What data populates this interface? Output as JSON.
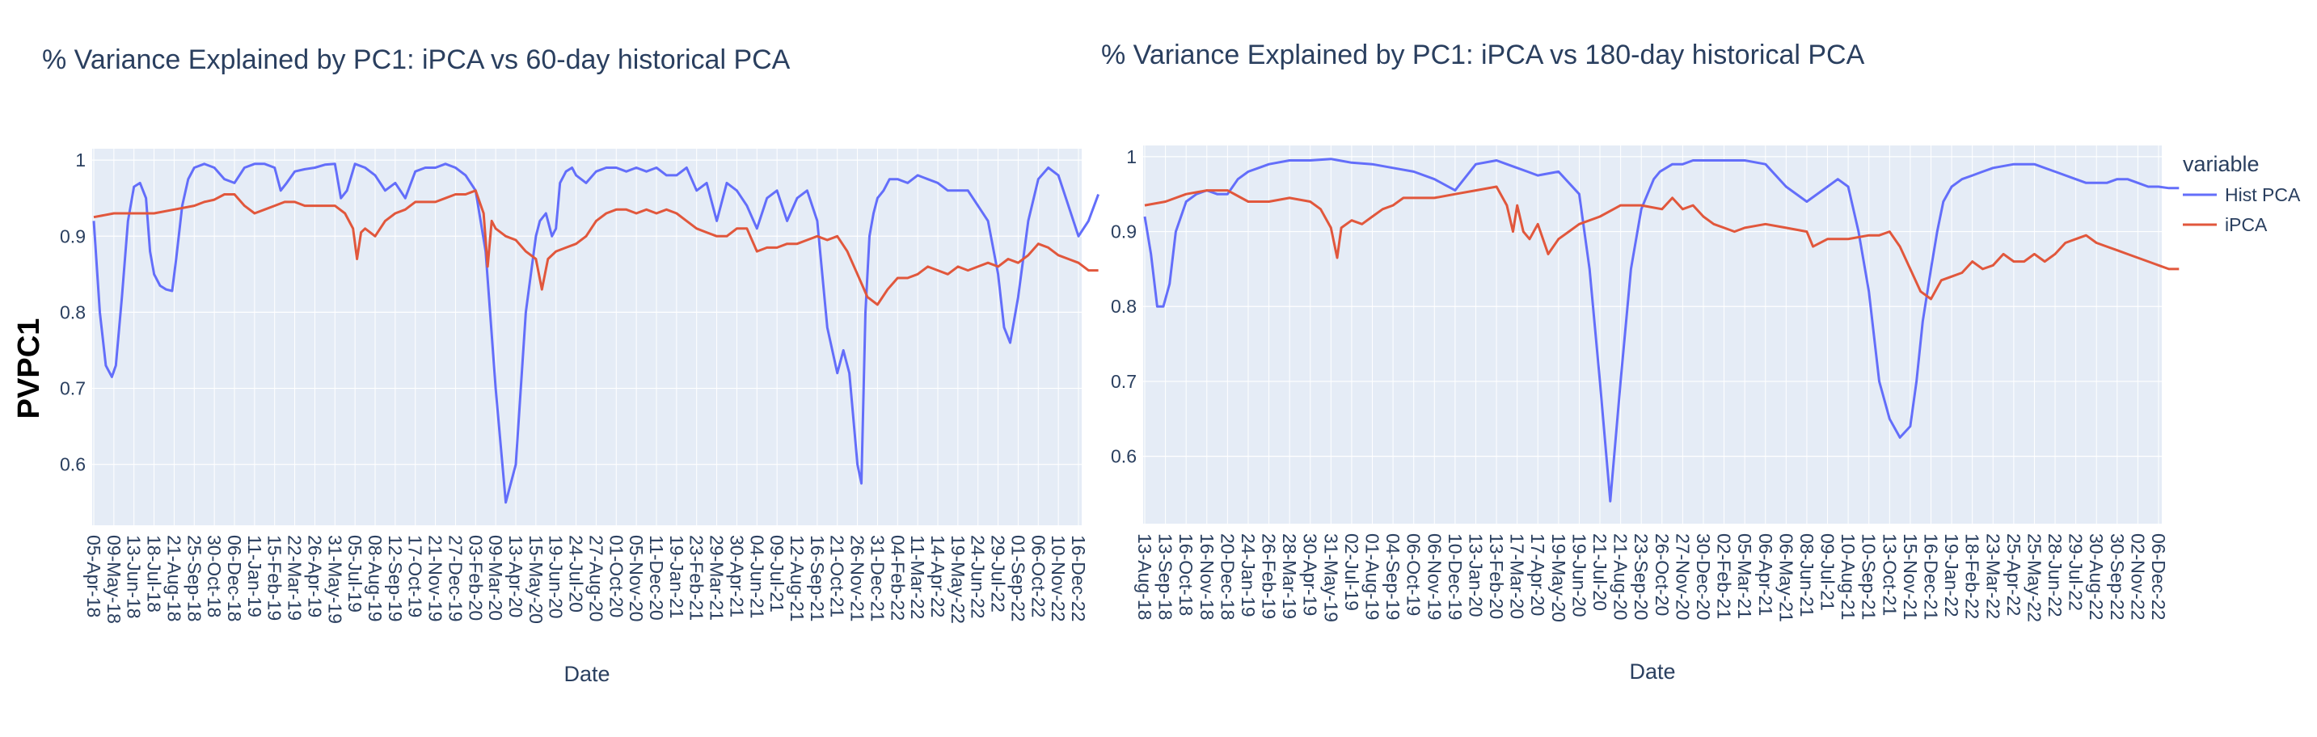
{
  "figure_ylabel": "PVPC1",
  "colors": {
    "Hist PCA": "#636efa",
    "iPCA": "#e1573c",
    "plot_bg": "#e5ecf6",
    "grid": "#ffffff",
    "text": "#2a3f5f"
  },
  "legend": {
    "title": "variable",
    "placement": "right",
    "entries": [
      "Hist PCA",
      "iPCA"
    ]
  },
  "chart_data": [
    {
      "type": "line",
      "title": "% Variance Explained by PC1: iPCA vs 60-day historical PCA",
      "xlabel": "Date",
      "ylabel": "PVPC1",
      "ylim": [
        0.52,
        1.015
      ],
      "yticks": [
        0.6,
        0.7,
        0.8,
        0.9,
        1
      ],
      "ytick_labels": [
        "0.6",
        "0.7",
        "0.8",
        "0.9",
        "1"
      ],
      "x_tick_labels": [
        "05-Apr-18",
        "09-May-18",
        "13-Jun-18",
        "18-Jul-18",
        "21-Aug-18",
        "25-Sep-18",
        "30-Oct-18",
        "06-Dec-18",
        "11-Jan-19",
        "15-Feb-19",
        "22-Mar-19",
        "26-Apr-19",
        "31-May-19",
        "05-Jul-19",
        "08-Aug-19",
        "12-Sep-19",
        "17-Oct-19",
        "21-Nov-19",
        "27-Dec-19",
        "03-Feb-20",
        "09-Mar-20",
        "13-Apr-20",
        "15-May-20",
        "19-Jun-20",
        "24-Jul-20",
        "27-Aug-20",
        "01-Oct-20",
        "05-Nov-20",
        "11-Dec-20",
        "19-Jan-21",
        "23-Feb-21",
        "29-Mar-21",
        "30-Apr-21",
        "04-Jun-21",
        "09-Jul-21",
        "12-Aug-21",
        "16-Sep-21",
        "21-Oct-21",
        "26-Nov-21",
        "31-Dec-21",
        "04-Feb-22",
        "11-Mar-22",
        "14-Apr-22",
        "19-May-22",
        "24-Jun-22",
        "29-Jul-22",
        "01-Sep-22",
        "06-Oct-22",
        "10-Nov-22",
        "16-Dec-22"
      ],
      "grid": true,
      "series": [
        {
          "name": "Hist PCA",
          "x": [
            0,
            0.3,
            0.6,
            0.9,
            1.1,
            1.4,
            1.7,
            2.0,
            2.3,
            2.6,
            2.8,
            3.0,
            3.3,
            3.6,
            3.9,
            4.1,
            4.4,
            4.7,
            5.0,
            5.5,
            6.0,
            6.5,
            7.0,
            7.5,
            8.0,
            8.5,
            9.0,
            9.3,
            9.6,
            10.0,
            10.5,
            11.0,
            11.5,
            12.0,
            12.3,
            12.6,
            13.0,
            13.5,
            14.0,
            14.5,
            15.0,
            15.5,
            16.0,
            16.5,
            17.0,
            17.5,
            18.0,
            18.5,
            19.0,
            19.5,
            20.0,
            20.5,
            21.0,
            21.5,
            22.0,
            22.2,
            22.5,
            22.8,
            23.0,
            23.2,
            23.5,
            23.8,
            24.0,
            24.5,
            25.0,
            25.5,
            26.0,
            26.5,
            27.0,
            27.5,
            28.0,
            28.5,
            29.0,
            29.5,
            30.0,
            30.5,
            31.0,
            31.5,
            32.0,
            32.5,
            33.0,
            33.5,
            34.0,
            34.5,
            35.0,
            35.5,
            36.0,
            36.5,
            37.0,
            37.3,
            37.6,
            38.0,
            38.2,
            38.4,
            38.6,
            38.8,
            39.0,
            39.3,
            39.6,
            40.0,
            40.5,
            41.0,
            41.5,
            42.0,
            42.5,
            43.0,
            43.5,
            44.0,
            44.5,
            45.0,
            45.3,
            45.6,
            46.0,
            46.5,
            47.0,
            47.5,
            48.0,
            48.5,
            49.0,
            49.5,
            49.99
          ],
          "values": [
            0.92,
            0.8,
            0.73,
            0.715,
            0.73,
            0.82,
            0.92,
            0.965,
            0.97,
            0.95,
            0.88,
            0.85,
            0.835,
            0.83,
            0.828,
            0.87,
            0.94,
            0.975,
            0.99,
            0.995,
            0.99,
            0.975,
            0.97,
            0.99,
            0.995,
            0.995,
            0.99,
            0.96,
            0.97,
            0.985,
            0.988,
            0.99,
            0.994,
            0.995,
            0.95,
            0.96,
            0.995,
            0.99,
            0.98,
            0.96,
            0.97,
            0.95,
            0.985,
            0.99,
            0.99,
            0.995,
            0.99,
            0.98,
            0.96,
            0.88,
            0.7,
            0.55,
            0.6,
            0.8,
            0.9,
            0.92,
            0.93,
            0.9,
            0.91,
            0.97,
            0.985,
            0.99,
            0.98,
            0.97,
            0.985,
            0.99,
            0.99,
            0.985,
            0.99,
            0.985,
            0.99,
            0.98,
            0.98,
            0.99,
            0.96,
            0.97,
            0.92,
            0.97,
            0.96,
            0.94,
            0.91,
            0.95,
            0.96,
            0.92,
            0.95,
            0.96,
            0.92,
            0.78,
            0.72,
            0.75,
            0.72,
            0.6,
            0.575,
            0.8,
            0.9,
            0.93,
            0.95,
            0.96,
            0.975,
            0.975,
            0.97,
            0.98,
            0.975,
            0.97,
            0.96,
            0.96,
            0.96,
            0.94,
            0.92,
            0.85,
            0.78,
            0.76,
            0.82,
            0.92,
            0.975,
            0.99,
            0.98,
            0.94,
            0.9,
            0.92,
            0.955
          ]
        },
        {
          "name": "iPCA",
          "x": [
            0,
            1.0,
            2.0,
            3.0,
            4.0,
            5.0,
            5.5,
            6.0,
            6.5,
            7.0,
            7.5,
            8.0,
            8.5,
            9.0,
            9.5,
            10.0,
            10.5,
            11.0,
            11.5,
            12.0,
            12.5,
            12.9,
            13.1,
            13.3,
            13.5,
            14.0,
            14.5,
            15.0,
            15.5,
            16.0,
            16.5,
            17.0,
            17.5,
            18.0,
            18.5,
            19.0,
            19.4,
            19.6,
            19.8,
            20.0,
            20.5,
            21.0,
            21.5,
            22.0,
            22.3,
            22.6,
            23.0,
            23.5,
            24.0,
            24.5,
            25.0,
            25.5,
            26.0,
            26.5,
            27.0,
            27.5,
            28.0,
            28.5,
            29.0,
            29.5,
            30.0,
            30.5,
            31.0,
            31.5,
            32.0,
            32.5,
            33.0,
            33.5,
            34.0,
            34.5,
            35.0,
            35.5,
            36.0,
            36.5,
            37.0,
            37.5,
            38.0,
            38.5,
            39.0,
            39.5,
            40.0,
            40.5,
            41.0,
            41.5,
            42.0,
            42.5,
            43.0,
            43.5,
            44.0,
            44.5,
            45.0,
            45.5,
            46.0,
            46.5,
            47.0,
            47.5,
            48.0,
            48.5,
            49.0,
            49.5,
            49.99
          ],
          "values": [
            0.925,
            0.93,
            0.93,
            0.93,
            0.935,
            0.94,
            0.945,
            0.948,
            0.955,
            0.955,
            0.94,
            0.93,
            0.935,
            0.94,
            0.945,
            0.945,
            0.94,
            0.94,
            0.94,
            0.94,
            0.93,
            0.91,
            0.87,
            0.905,
            0.91,
            0.9,
            0.92,
            0.93,
            0.935,
            0.945,
            0.945,
            0.945,
            0.95,
            0.955,
            0.955,
            0.96,
            0.93,
            0.86,
            0.92,
            0.91,
            0.9,
            0.895,
            0.88,
            0.87,
            0.83,
            0.87,
            0.88,
            0.885,
            0.89,
            0.9,
            0.92,
            0.93,
            0.935,
            0.935,
            0.93,
            0.935,
            0.93,
            0.935,
            0.93,
            0.92,
            0.91,
            0.905,
            0.9,
            0.9,
            0.91,
            0.91,
            0.88,
            0.885,
            0.885,
            0.89,
            0.89,
            0.895,
            0.9,
            0.895,
            0.9,
            0.88,
            0.85,
            0.82,
            0.81,
            0.83,
            0.845,
            0.845,
            0.85,
            0.86,
            0.855,
            0.85,
            0.86,
            0.855,
            0.86,
            0.865,
            0.86,
            0.87,
            0.865,
            0.875,
            0.89,
            0.885,
            0.875,
            0.87,
            0.865,
            0.855,
            0.855
          ]
        }
      ]
    },
    {
      "type": "line",
      "title": "% Variance Explained by PC1: iPCA vs 180-day historical PCA",
      "xlabel": "Date",
      "ylabel": "",
      "ylim": [
        0.51,
        1.015
      ],
      "yticks": [
        0.6,
        0.7,
        0.8,
        0.9,
        1
      ],
      "ytick_labels": [
        "0.6",
        "0.7",
        "0.8",
        "0.9",
        "1"
      ],
      "x_tick_labels": [
        "13-Aug-18",
        "13-Sep-18",
        "16-Oct-18",
        "16-Nov-18",
        "20-Dec-18",
        "24-Jan-19",
        "26-Feb-19",
        "28-Mar-19",
        "30-Apr-19",
        "31-May-19",
        "02-Jul-19",
        "01-Aug-19",
        "04-Sep-19",
        "06-Oct-19",
        "06-Nov-19",
        "10-Dec-19",
        "13-Jan-20",
        "13-Feb-20",
        "17-Mar-20",
        "17-Apr-20",
        "19-May-20",
        "19-Jun-20",
        "21-Jul-20",
        "21-Aug-20",
        "23-Sep-20",
        "26-Oct-20",
        "27-Nov-20",
        "30-Dec-20",
        "02-Feb-21",
        "05-Mar-21",
        "06-Apr-21",
        "06-May-21",
        "08-Jun-21",
        "09-Jul-21",
        "10-Aug-21",
        "10-Sep-21",
        "13-Oct-21",
        "15-Nov-21",
        "16-Dec-21",
        "19-Jan-22",
        "18-Feb-22",
        "23-Mar-22",
        "25-Apr-22",
        "25-May-22",
        "28-Jun-22",
        "29-Jul-22",
        "30-Aug-22",
        "30-Sep-22",
        "02-Nov-22",
        "06-Dec-22"
      ],
      "grid": true,
      "series": [
        {
          "name": "Hist PCA",
          "x": [
            0,
            0.3,
            0.6,
            0.9,
            1.2,
            1.5,
            2.0,
            2.5,
            3.0,
            3.5,
            4.0,
            4.5,
            5.0,
            5.5,
            6.0,
            7.0,
            8.0,
            9.0,
            10.0,
            11.0,
            12.0,
            13.0,
            14.0,
            15.0,
            16.0,
            17.0,
            17.5,
            18.0,
            18.5,
            19.0,
            20.0,
            21.0,
            21.5,
            22.0,
            22.5,
            23.0,
            23.5,
            24.0,
            24.3,
            24.6,
            24.9,
            25.2,
            25.5,
            26.0,
            26.5,
            27.0,
            28.0,
            29.0,
            30.0,
            31.0,
            32.0,
            33.0,
            33.5,
            34.0,
            34.5,
            35.0,
            35.5,
            36.0,
            36.5,
            37.0,
            37.3,
            37.6,
            38.0,
            38.3,
            38.6,
            39.0,
            39.5,
            40.0,
            40.5,
            41.0,
            42.0,
            43.0,
            44.0,
            45.0,
            45.5,
            46.0,
            46.5,
            47.0,
            47.5,
            48.0,
            48.5,
            49.0,
            49.5,
            49.99
          ],
          "values": [
            0.92,
            0.87,
            0.8,
            0.8,
            0.83,
            0.9,
            0.94,
            0.95,
            0.955,
            0.95,
            0.95,
            0.97,
            0.98,
            0.985,
            0.99,
            0.995,
            0.995,
            0.997,
            0.992,
            0.99,
            0.985,
            0.98,
            0.97,
            0.955,
            0.99,
            0.995,
            0.99,
            0.985,
            0.98,
            0.975,
            0.98,
            0.95,
            0.85,
            0.7,
            0.54,
            0.7,
            0.85,
            0.93,
            0.95,
            0.97,
            0.98,
            0.985,
            0.99,
            0.99,
            0.995,
            0.995,
            0.995,
            0.995,
            0.99,
            0.96,
            0.94,
            0.96,
            0.97,
            0.96,
            0.9,
            0.82,
            0.7,
            0.65,
            0.625,
            0.64,
            0.7,
            0.78,
            0.85,
            0.9,
            0.94,
            0.96,
            0.97,
            0.975,
            0.98,
            0.985,
            0.99,
            0.99,
            0.98,
            0.97,
            0.965,
            0.965,
            0.965,
            0.97,
            0.97,
            0.965,
            0.96,
            0.96,
            0.958,
            0.958
          ]
        },
        {
          "name": "iPCA",
          "x": [
            0,
            1.0,
            2.0,
            3.0,
            3.5,
            4.0,
            5.0,
            6.0,
            7.0,
            8.0,
            8.5,
            9.0,
            9.3,
            9.5,
            10.0,
            10.5,
            11.0,
            11.5,
            12.0,
            12.5,
            13.0,
            14.0,
            15.0,
            16.0,
            17.0,
            17.5,
            17.8,
            18.0,
            18.3,
            18.6,
            19.0,
            19.5,
            20.0,
            20.5,
            21.0,
            22.0,
            23.0,
            24.0,
            25.0,
            25.5,
            26.0,
            26.5,
            27.0,
            27.5,
            28.0,
            28.5,
            29.0,
            30.0,
            31.0,
            32.0,
            32.3,
            33.0,
            34.0,
            35.0,
            35.5,
            36.0,
            36.5,
            37.0,
            37.5,
            38.0,
            38.5,
            39.0,
            39.5,
            40.0,
            40.5,
            41.0,
            41.5,
            42.0,
            42.5,
            43.0,
            43.5,
            44.0,
            44.5,
            45.0,
            45.5,
            46.0,
            46.5,
            47.0,
            47.5,
            48.0,
            48.5,
            49.0,
            49.5,
            49.99
          ],
          "values": [
            0.935,
            0.94,
            0.95,
            0.955,
            0.955,
            0.955,
            0.94,
            0.94,
            0.945,
            0.94,
            0.93,
            0.905,
            0.865,
            0.905,
            0.915,
            0.91,
            0.92,
            0.93,
            0.935,
            0.945,
            0.945,
            0.945,
            0.95,
            0.955,
            0.96,
            0.935,
            0.9,
            0.935,
            0.9,
            0.89,
            0.91,
            0.87,
            0.89,
            0.9,
            0.91,
            0.92,
            0.935,
            0.935,
            0.93,
            0.945,
            0.93,
            0.935,
            0.92,
            0.91,
            0.905,
            0.9,
            0.905,
            0.91,
            0.905,
            0.9,
            0.88,
            0.89,
            0.89,
            0.895,
            0.895,
            0.9,
            0.88,
            0.85,
            0.82,
            0.81,
            0.835,
            0.84,
            0.845,
            0.86,
            0.85,
            0.855,
            0.87,
            0.86,
            0.86,
            0.87,
            0.86,
            0.87,
            0.885,
            0.89,
            0.895,
            0.885,
            0.88,
            0.875,
            0.87,
            0.865,
            0.86,
            0.855,
            0.85,
            0.85
          ]
        }
      ]
    }
  ]
}
